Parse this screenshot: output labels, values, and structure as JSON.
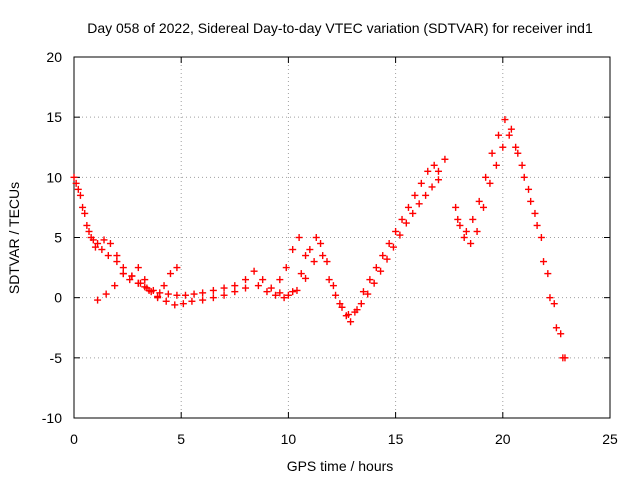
{
  "chart_data": {
    "type": "scatter",
    "title": "Day 058 of 2022, Sidereal Day-to-day VTEC variation (SDTVAR) for receiver ind1",
    "xlabel": "GPS time / hours",
    "ylabel": "SDTVAR / TECUs",
    "xlim": [
      0,
      25
    ],
    "ylim": [
      -10,
      20
    ],
    "xticks": [
      0,
      5,
      10,
      15,
      20,
      25
    ],
    "yticks": [
      -10,
      -5,
      0,
      5,
      10,
      15,
      20
    ],
    "grid": true,
    "marker": "plus",
    "series": [
      {
        "name": "SDTVAR",
        "color": "#ff0000",
        "tracks": [
          {
            "x": [
              0.0,
              0.2,
              0.4,
              0.6,
              0.8,
              1.0,
              1.3,
              1.6,
              2.0,
              2.3,
              2.6,
              3.0,
              3.4,
              3.7,
              4.0,
              4.4,
              4.8,
              5.2,
              5.6,
              6.0,
              6.5,
              7.0,
              7.5,
              8.0
            ],
            "y": [
              10.0,
              9.0,
              7.5,
              6.0,
              5.0,
              4.2,
              4.0,
              3.5,
              3.0,
              2.0,
              1.5,
              1.2,
              0.8,
              0.6,
              0.4,
              0.3,
              0.2,
              0.2,
              0.3,
              0.4,
              0.6,
              0.8,
              1.0,
              1.5
            ]
          },
          {
            "x": [
              0.1,
              0.3,
              0.5,
              0.7,
              0.9,
              1.1,
              1.4,
              1.7,
              2.0,
              2.3,
              2.7,
              3.0,
              3.3
            ],
            "y": [
              9.5,
              8.5,
              7.0,
              5.5,
              4.8,
              4.5,
              4.8,
              4.5,
              3.5,
              2.5,
              1.8,
              1.2,
              0.9
            ]
          },
          {
            "x": [
              1.1,
              1.5,
              1.9,
              2.3,
              2.7,
              3.1,
              3.5,
              3.9,
              4.3,
              4.7,
              5.1,
              5.5,
              6.0,
              6.5,
              7.0,
              7.5,
              8.0
            ],
            "y": [
              -0.2,
              0.3,
              1.0,
              2.0,
              1.8,
              1.2,
              0.6,
              0.1,
              -0.3,
              -0.6,
              -0.5,
              -0.3,
              -0.2,
              0.0,
              0.2,
              0.5,
              0.8
            ]
          },
          {
            "x": [
              3.0,
              3.3,
              3.6,
              3.9,
              4.2,
              4.5,
              4.8
            ],
            "y": [
              2.5,
              1.5,
              0.5,
              0.0,
              1.0,
              2.0,
              2.5
            ]
          },
          {
            "x": [
              8.4,
              8.8,
              9.2,
              9.6,
              10.0,
              10.4,
              10.8,
              11.2,
              11.5,
              11.8,
              12.1,
              12.4,
              12.7,
              12.9,
              13.2,
              13.5,
              13.8,
              14.1,
              14.4,
              14.7,
              15.0,
              15.3,
              15.6,
              15.9,
              16.2,
              16.5,
              16.8,
              17.0
            ],
            "y": [
              2.2,
              1.5,
              0.8,
              0.4,
              0.2,
              0.6,
              1.6,
              3.0,
              4.5,
              3.0,
              1.0,
              -0.5,
              -1.5,
              -2.0,
              -1.0,
              0.5,
              1.5,
              2.5,
              3.5,
              4.5,
              5.5,
              6.5,
              7.5,
              8.5,
              9.5,
              10.5,
              11.0,
              10.5
            ]
          },
          {
            "x": [
              8.6,
              9.0,
              9.4,
              9.8,
              10.2,
              10.6,
              11.0,
              11.3,
              11.6,
              11.9,
              12.2,
              12.5,
              12.8,
              13.1,
              13.4,
              13.7,
              14.0,
              14.3,
              14.6,
              14.9,
              15.2,
              15.5,
              15.8,
              16.1,
              16.4,
              16.7,
              17.0,
              17.3
            ],
            "y": [
              1.0,
              0.5,
              0.2,
              0.0,
              0.5,
              2.0,
              4.0,
              5.0,
              3.5,
              1.5,
              0.2,
              -0.8,
              -1.4,
              -1.2,
              -0.5,
              0.3,
              1.2,
              2.2,
              3.2,
              4.2,
              5.2,
              6.2,
              7.0,
              7.8,
              8.5,
              9.2,
              9.8,
              11.5
            ]
          },
          {
            "x": [
              9.6,
              9.9,
              10.2,
              10.5,
              10.8
            ],
            "y": [
              1.5,
              2.5,
              4.0,
              5.0,
              3.5
            ]
          },
          {
            "x": [
              17.8,
              18.0,
              18.3,
              18.6,
              18.9,
              19.2,
              19.5,
              19.8,
              20.1,
              20.4,
              20.7,
              21.0,
              21.3,
              21.6,
              21.9,
              22.2,
              22.5,
              22.8
            ],
            "y": [
              7.5,
              6.0,
              5.5,
              6.5,
              8.0,
              10.0,
              12.0,
              13.5,
              14.8,
              14.0,
              12.0,
              10.0,
              8.0,
              6.0,
              3.0,
              0.0,
              -2.5,
              -5.0
            ]
          },
          {
            "x": [
              17.9,
              18.2,
              18.5,
              18.8,
              19.1,
              19.4,
              19.7,
              20.0,
              20.3,
              20.6,
              20.9,
              21.2,
              21.5,
              21.8,
              22.1,
              22.4,
              22.7,
              22.9
            ],
            "y": [
              6.5,
              5.0,
              4.5,
              5.5,
              7.5,
              9.5,
              11.0,
              12.5,
              13.5,
              12.5,
              11.0,
              9.0,
              7.0,
              5.0,
              2.0,
              -0.5,
              -3.0,
              -5.0
            ]
          }
        ]
      }
    ]
  }
}
